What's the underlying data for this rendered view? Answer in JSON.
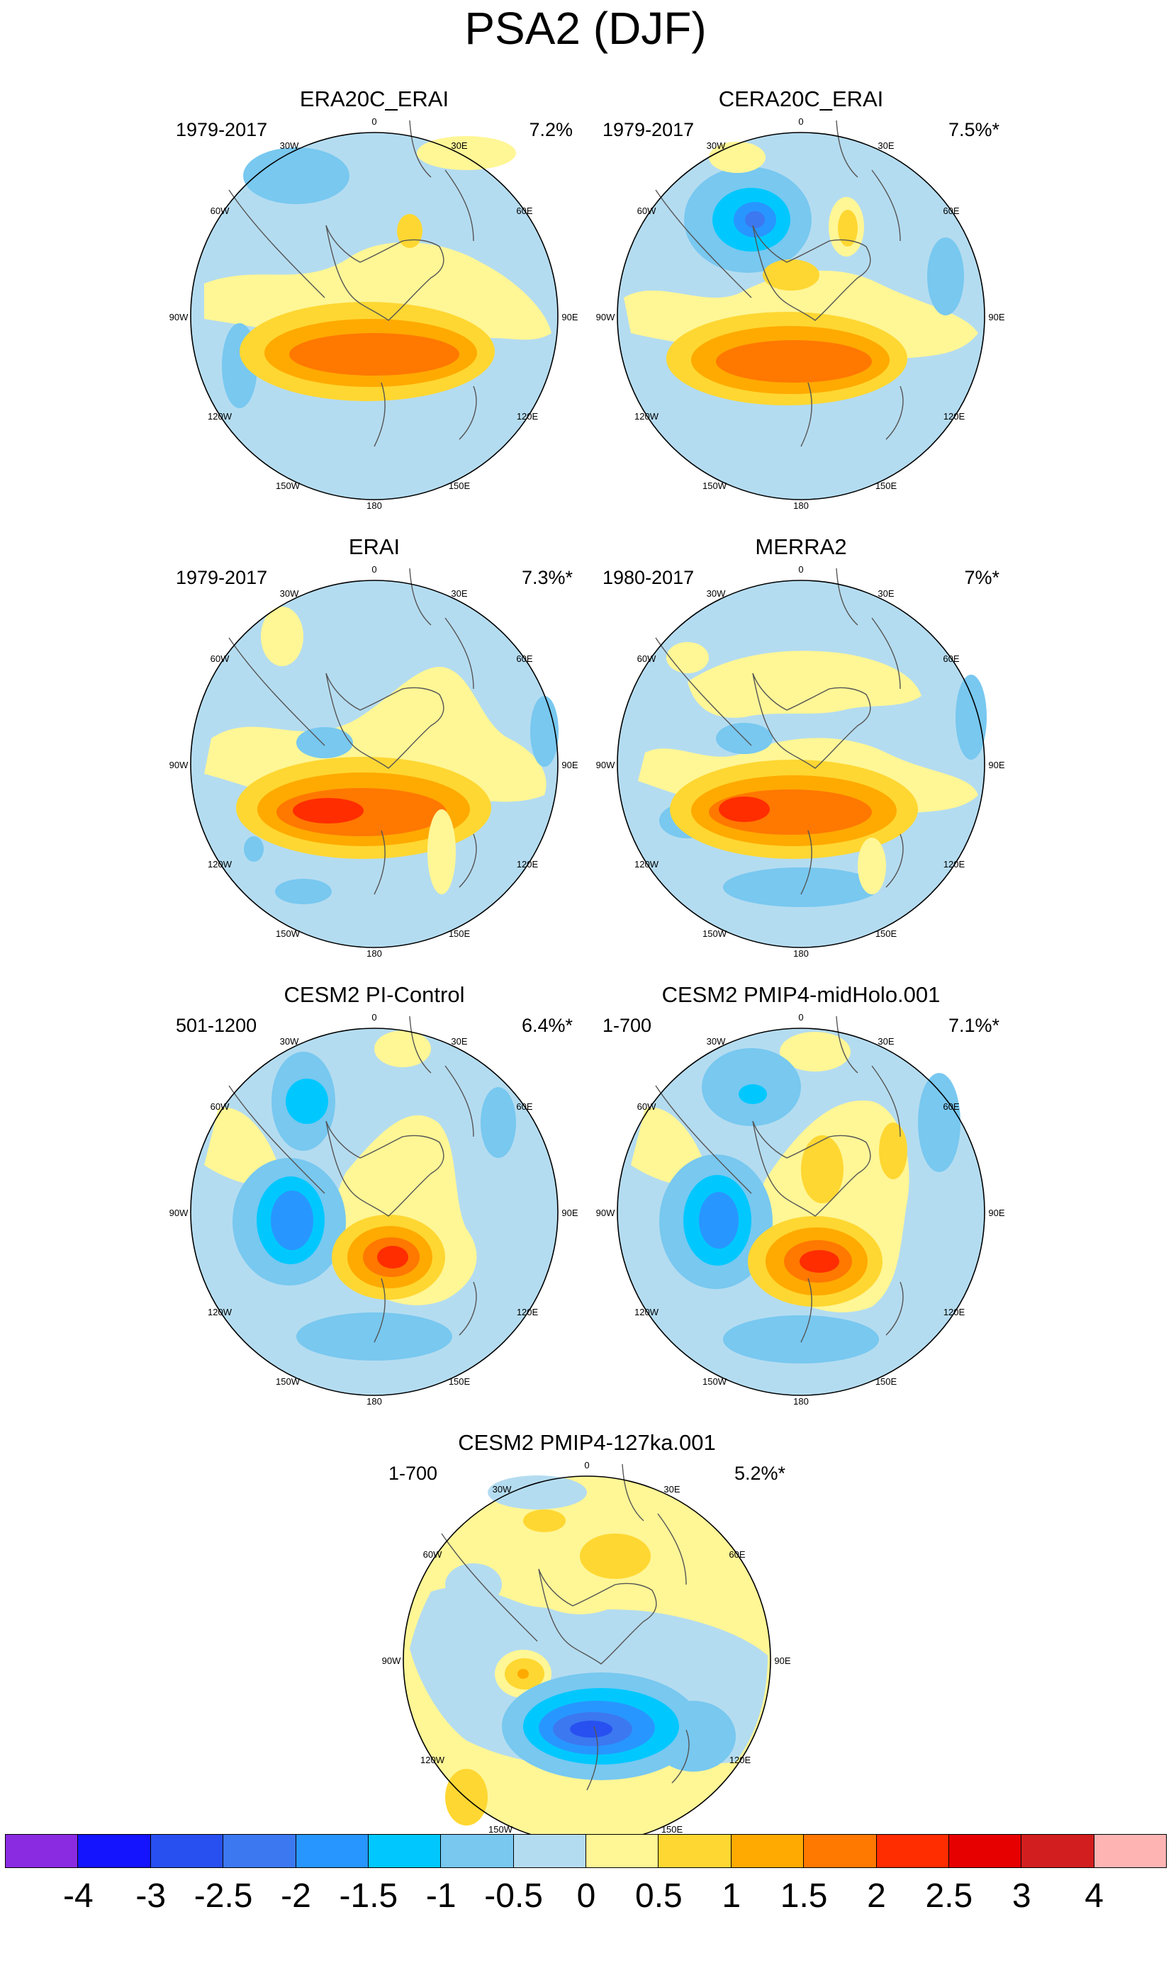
{
  "title": "PSA2 (DJF)",
  "longitude_labels": {
    "top": "0",
    "tr1": "30E",
    "tr2": "60E",
    "right": "90E",
    "br1": "120E",
    "br2": "150E",
    "bottom": "180",
    "bl2": "150W",
    "bl1": "120W",
    "left": "90W",
    "tl2": "60W",
    "tl1": "30W"
  },
  "panels": [
    {
      "title": "ERA20C_ERAI",
      "period": "1979-2017",
      "variance": "7.2%"
    },
    {
      "title": "CERA20C_ERAI",
      "period": "1979-2017",
      "variance": "7.5%*"
    },
    {
      "title": "ERAI",
      "period": "1979-2017",
      "variance": "7.3%*"
    },
    {
      "title": "MERRA2",
      "period": "1980-2017",
      "variance": "7%*"
    },
    {
      "title": "CESM2 PI-Control",
      "period": "501-1200",
      "variance": "6.4%*"
    },
    {
      "title": "CESM2 PMIP4-midHolo.001",
      "period": "1-700",
      "variance": "7.1%*"
    },
    {
      "title": "CESM2 PMIP4-127ka.001",
      "period": "1-700",
      "variance": "5.2%*"
    }
  ],
  "colorbar": {
    "labels": [
      "-4",
      "-3",
      "-2.5",
      "-2",
      "-1.5",
      "-1",
      "-0.5",
      "0",
      "0.5",
      "1",
      "1.5",
      "2",
      "2.5",
      "3",
      "4"
    ],
    "colors": [
      "#8A2BE2",
      "#1414FF",
      "#2850F0",
      "#3C78F0",
      "#2896FF",
      "#00C8FF",
      "#78C8F0",
      "#B4DCF0",
      "#FFF696",
      "#FFD732",
      "#FFAA00",
      "#FF7800",
      "#FF2D00",
      "#E60000",
      "#D21E1E",
      "#FFB4B4"
    ]
  },
  "chart_data": {
    "type": "heatmap",
    "description_units": "contour levels of PSA2 pattern amplitude",
    "levels": [
      -4,
      -3,
      -2.5,
      -2,
      -1.5,
      -1,
      -0.5,
      0,
      0.5,
      1,
      1.5,
      2,
      2.5,
      3,
      4
    ],
    "projection": "south polar stereographic",
    "series": [
      {
        "name": "ERA20C_ERAI",
        "period": "1979-2017",
        "explained_variance_pct": 7.2,
        "max_positive": 2.5,
        "min_negative": -1.0
      },
      {
        "name": "CERA20C_ERAI",
        "period": "1979-2017",
        "explained_variance_pct": 7.5,
        "max_positive": 2.5,
        "min_negative": -2.5
      },
      {
        "name": "ERAI",
        "period": "1979-2017",
        "explained_variance_pct": 7.3,
        "max_positive": 3.0,
        "min_negative": -1.0
      },
      {
        "name": "MERRA2",
        "period": "1980-2017",
        "explained_variance_pct": 7.0,
        "max_positive": 3.0,
        "min_negative": -1.0
      },
      {
        "name": "CESM2 PI-Control",
        "period": "501-1200",
        "explained_variance_pct": 6.4,
        "max_positive": 3.0,
        "min_negative": -2.0
      },
      {
        "name": "CESM2 PMIP4-midHolo.001",
        "period": "1-700",
        "explained_variance_pct": 7.1,
        "max_positive": 3.0,
        "min_negative": -2.5
      },
      {
        "name": "CESM2 PMIP4-127ka.001",
        "period": "1-700",
        "explained_variance_pct": 5.2,
        "max_positive": 2.0,
        "min_negative": -3.0
      }
    ]
  }
}
